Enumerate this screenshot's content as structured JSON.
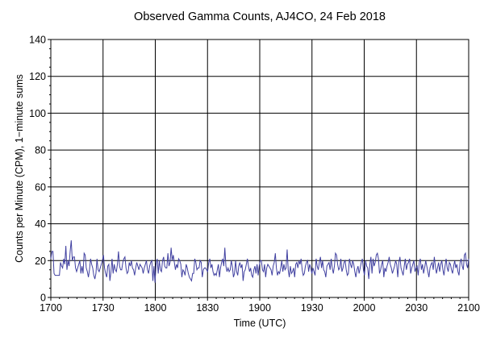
{
  "chart_data": {
    "type": "line",
    "title": "Observed Gamma Counts, AJ4CO, 24 Feb 2018",
    "xlabel": "Time (UTC)",
    "ylabel": "Counts per Minute (CPM), 1−minute sums",
    "xlim": [
      0,
      240
    ],
    "ylim": [
      0,
      140
    ],
    "x_tick_labels": [
      "1700",
      "1730",
      "1800",
      "1830",
      "1900",
      "1930",
      "2000",
      "2030",
      "2100"
    ],
    "y_tick_labels": [
      "0",
      "20",
      "40",
      "60",
      "80",
      "100",
      "120",
      "140"
    ],
    "grid": true,
    "line_color": "#4040a0",
    "series": [
      {
        "values": [
          21,
          25,
          25,
          13,
          12,
          12,
          12,
          12,
          12,
          19,
          17,
          16,
          21,
          18,
          28,
          15,
          20,
          17,
          25,
          31,
          20,
          22,
          22,
          16,
          14,
          16,
          18,
          20,
          13,
          17,
          13,
          24,
          23,
          16,
          14,
          11,
          15,
          21,
          18,
          16,
          12,
          10,
          13,
          21,
          15,
          14,
          16,
          18,
          20,
          23,
          16,
          13,
          11,
          17,
          18,
          9,
          14,
          21,
          13,
          18,
          15,
          14,
          18,
          25,
          17,
          15,
          15,
          19,
          21,
          22,
          16,
          13,
          14,
          19,
          17,
          20,
          16,
          15,
          12,
          16,
          19,
          17,
          15,
          18,
          17,
          16,
          13,
          16,
          18,
          20,
          15,
          13,
          17,
          19,
          20,
          9,
          17,
          8,
          18,
          21,
          13,
          20,
          15,
          14,
          20,
          22,
          17,
          16,
          16,
          24,
          17,
          19,
          27,
          20,
          23,
          19,
          15,
          18,
          16,
          21,
          20,
          18,
          11,
          15,
          14,
          12,
          18,
          16,
          13,
          11,
          10,
          9,
          13,
          13,
          21,
          19,
          15,
          16,
          16,
          20,
          19,
          11,
          15,
          16,
          16,
          15,
          14,
          19,
          21,
          16,
          18,
          14,
          12,
          13,
          12,
          15,
          18,
          11,
          16,
          19,
          21,
          17,
          27,
          17,
          14,
          16,
          14,
          15,
          20,
          17,
          11,
          13,
          20,
          14,
          12,
          17,
          19,
          16,
          18,
          9,
          14,
          15,
          18,
          21,
          17,
          14,
          16,
          12,
          11,
          15,
          17,
          13,
          18,
          12,
          17,
          20,
          20,
          15,
          14,
          18,
          11,
          16,
          18,
          17,
          16,
          15,
          12,
          17,
          19,
          24,
          16,
          12,
          14,
          13,
          16,
          20,
          14,
          18,
          15,
          16,
          26,
          15,
          11,
          17,
          13,
          14,
          16,
          11,
          18,
          19,
          16,
          20,
          18,
          21,
          15,
          12,
          13,
          17,
          19,
          20,
          14,
          18,
          16,
          13,
          16,
          14,
          12,
          21,
          17,
          15,
          19,
          22,
          16,
          20,
          15,
          14,
          11,
          17,
          18,
          19,
          15,
          21,
          16,
          13,
          17,
          24,
          23,
          18,
          15,
          16,
          21,
          14,
          16,
          19,
          20,
          15,
          12,
          13,
          21,
          18,
          16,
          20,
          18,
          14,
          11,
          15,
          17,
          13,
          16,
          19,
          21,
          15,
          12,
          20,
          17,
          16,
          10,
          18,
          22,
          13,
          21,
          17,
          19,
          23,
          24,
          21,
          13,
          15,
          18,
          20,
          11,
          16,
          14,
          17,
          19,
          22,
          18,
          16,
          13,
          15,
          17,
          20,
          18,
          11,
          19,
          22,
          16,
          14,
          12,
          17,
          21,
          15,
          18,
          19,
          21,
          13,
          16,
          18,
          20,
          14,
          16,
          17,
          12,
          19,
          21,
          15,
          18,
          13,
          16,
          20,
          17,
          14,
          11,
          16,
          18,
          19,
          15,
          22,
          17,
          13,
          16,
          19,
          14,
          18,
          20,
          15,
          12,
          17,
          21,
          16,
          14,
          19,
          18,
          15,
          13,
          17,
          20,
          16,
          18,
          14,
          12,
          19,
          21,
          17,
          15,
          23,
          24,
          18,
          16,
          21
        ]
      }
    ]
  }
}
